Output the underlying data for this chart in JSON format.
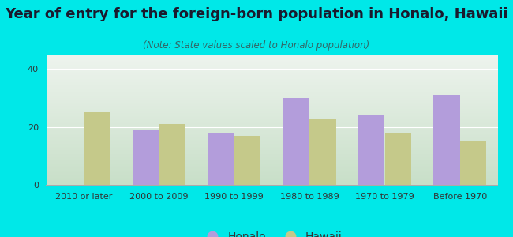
{
  "title": "Year of entry for the foreign-born population in Honalo, Hawaii",
  "subtitle": "(Note: State values scaled to Honalo population)",
  "categories": [
    "2010 or later",
    "2000 to 2009",
    "1990 to 1999",
    "1980 to 1989",
    "1970 to 1979",
    "Before 1970"
  ],
  "honalo_values": [
    0,
    19,
    18,
    30,
    24,
    31
  ],
  "hawaii_values": [
    25,
    21,
    17,
    23,
    18,
    15
  ],
  "honalo_color": "#b39ddb",
  "hawaii_color": "#c5c98a",
  "background_outer": "#00e8e8",
  "background_inner_top": "#eef4ee",
  "background_inner_bottom": "#c8dfc8",
  "ylim": [
    0,
    45
  ],
  "yticks": [
    0,
    20,
    40
  ],
  "bar_width": 0.35,
  "title_fontsize": 13,
  "subtitle_fontsize": 8.5,
  "tick_fontsize": 8,
  "legend_fontsize": 10
}
